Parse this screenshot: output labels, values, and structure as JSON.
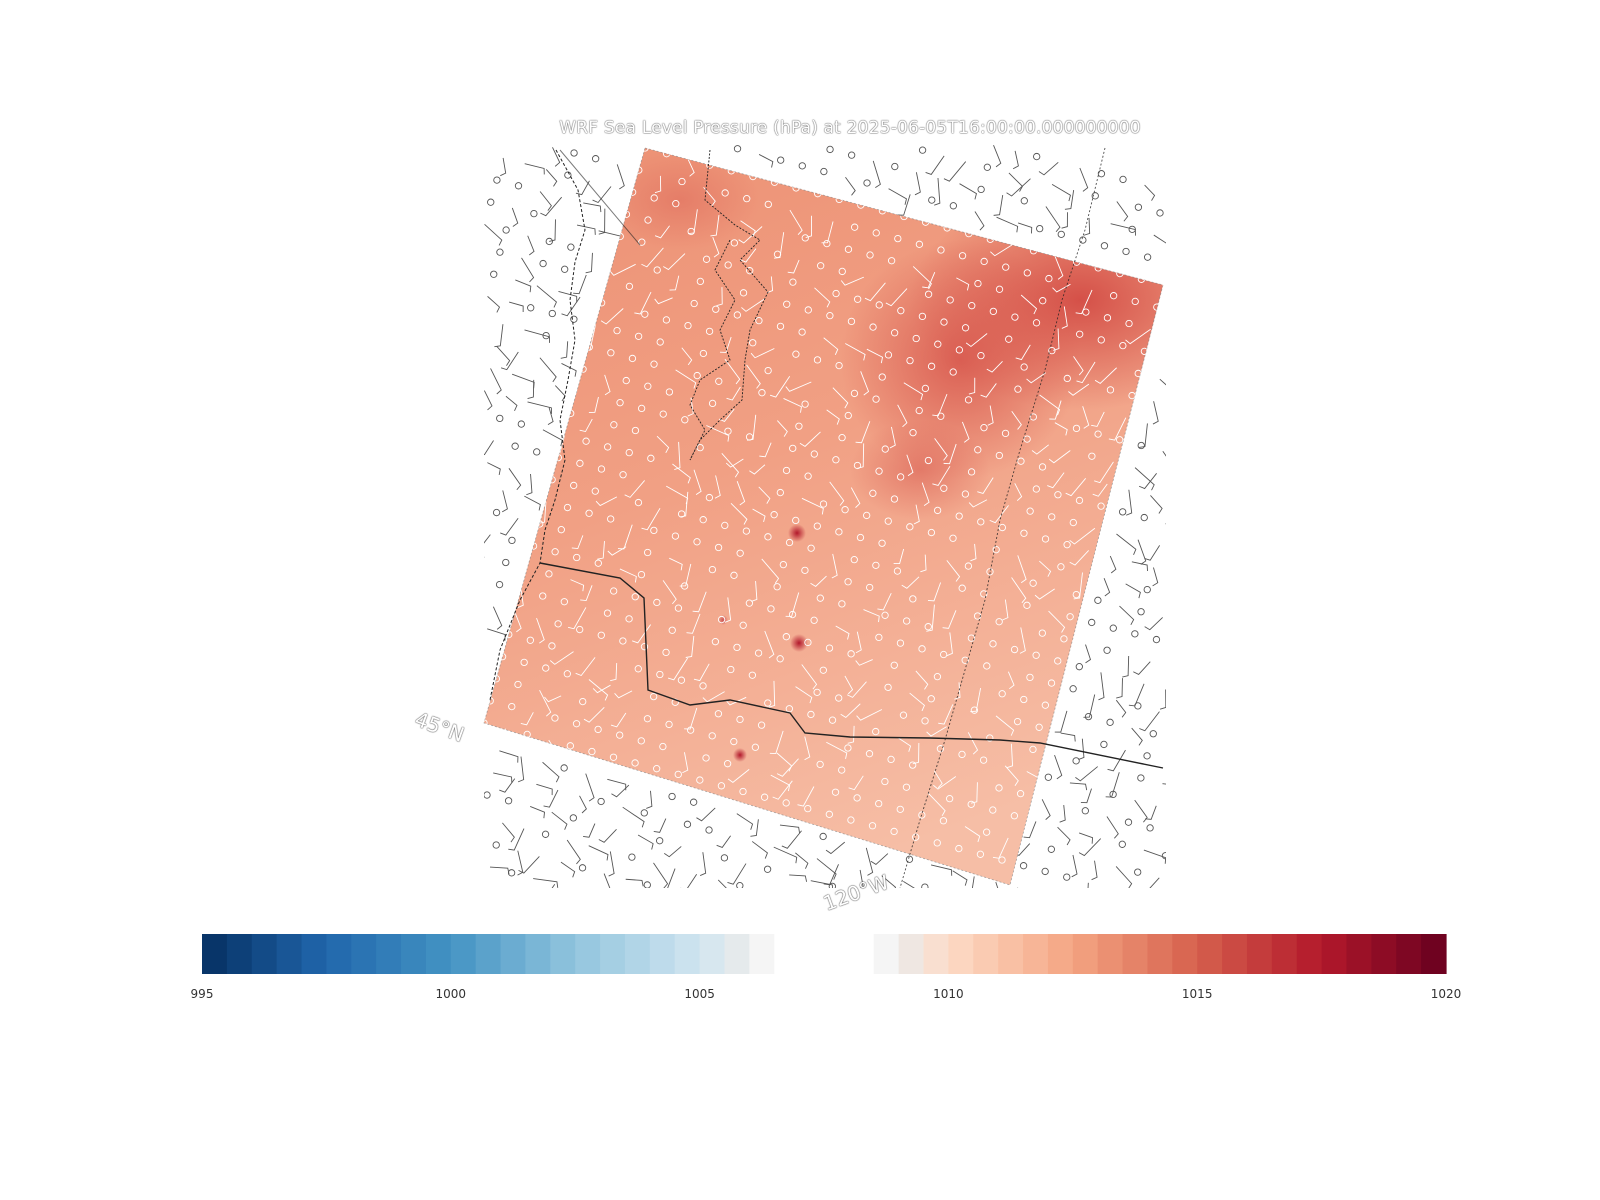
{
  "map": {
    "title": "WRF Sea Level Pressure (hPa) at 2025-06-05T16:00:00.000000000",
    "lat_label": "45°N",
    "lon_label": "120°W"
  },
  "colorbar": {
    "min": 995,
    "max": 1020,
    "ticks": [
      "995",
      "1000",
      "1005",
      "1010",
      "1015",
      "1020"
    ],
    "levels": 50,
    "colormap": "RdBu_r"
  },
  "colors": {
    "field_base": "#f0a081",
    "field_high": "#d6524a",
    "field_low": "#f7c7b0"
  }
}
